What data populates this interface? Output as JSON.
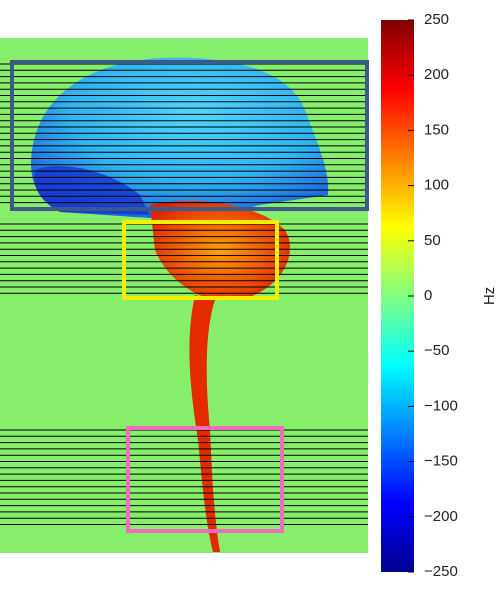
{
  "colorbar": {
    "label": "Hz",
    "lim": [
      -250,
      250
    ],
    "ticks": [
      250,
      200,
      150,
      100,
      50,
      0,
      {
        "value": -50,
        "label": "−50"
      },
      {
        "value": -100,
        "label": "−100"
      },
      {
        "value": -150,
        "label": "−150"
      },
      {
        "value": -200,
        "label": "−200"
      },
      {
        "value": -250,
        "label": "−250"
      }
    ]
  }
}
